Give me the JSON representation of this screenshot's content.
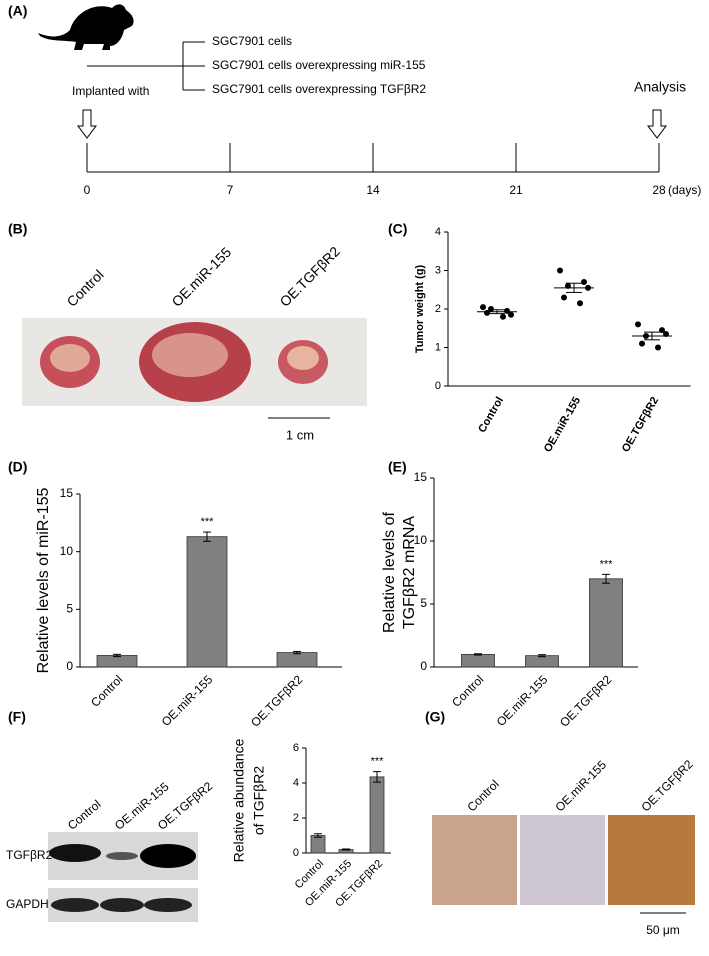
{
  "panel_labels": [
    "(A)",
    "(B)",
    "(C)",
    "(D)",
    "(E)",
    "(F)",
    "(G)"
  ],
  "timeline": {
    "groups": [
      "SGC7901 cells",
      "SGC7901 cells overexpressing miR-155",
      "SGC7901 cells overexpressing TGFβR2"
    ],
    "start_label": "Implanted with",
    "end_label": "Analysis",
    "days": [
      0,
      7,
      14,
      21,
      28
    ],
    "unit": "(days)"
  },
  "panel_b": {
    "labels": [
      "Control",
      "OE.miR-155",
      "OE.TGFβR2"
    ],
    "scale_bar": "1 cm"
  },
  "panel_f_blot": {
    "labels": [
      "Control",
      "OE.miR-155",
      "OE.TGFβR2"
    ],
    "bands": [
      "TGFβR2",
      "GAPDH"
    ]
  },
  "panel_g": {
    "labels": [
      "Control",
      "OE.miR-155",
      "OE.TGFβR2"
    ],
    "scale_bar": "50 μm"
  },
  "chart_data": [
    {
      "type": "dot",
      "ylabel": "Tumor weight (g)",
      "categories": [
        "Control",
        "OE.miR-155",
        "OE.TGFβR2"
      ],
      "points": [
        [
          2.05,
          1.95,
          2.0,
          1.85,
          1.9,
          1.8
        ],
        [
          3.0,
          2.7,
          2.6,
          2.55,
          2.3,
          2.15
        ],
        [
          1.6,
          1.45,
          1.3,
          1.35,
          1.1,
          1.0
        ]
      ],
      "means": [
        1.93,
        2.55,
        1.3
      ],
      "errors": [
        0.05,
        0.12,
        0.1
      ],
      "color": "#000000",
      "ylim": [
        0,
        4
      ],
      "yticks": [
        0,
        1,
        2,
        3,
        4
      ]
    },
    {
      "type": "bar",
      "ylabel": "Relative levels of miR-155",
      "categories": [
        "Control",
        "OE.miR-155",
        "OE.TGFβR2"
      ],
      "values": [
        1,
        11.3,
        1.25
      ],
      "errors": [
        0.1,
        0.4,
        0.1
      ],
      "significance": [
        null,
        "***",
        null
      ],
      "color": "#808080",
      "ylim": [
        0,
        15
      ],
      "yticks": [
        0,
        5,
        10,
        15
      ]
    },
    {
      "type": "bar",
      "ylabel": [
        "Relative levels of",
        "TGFβR2 mRNA"
      ],
      "categories": [
        "Control",
        "OE.miR-155",
        "OE.TGFβR2"
      ],
      "values": [
        1,
        0.9,
        7
      ],
      "errors": [
        0.05,
        0.08,
        0.35
      ],
      "significance": [
        null,
        null,
        "***"
      ],
      "color": "#808080",
      "ylim": [
        0,
        15
      ],
      "yticks": [
        0,
        5,
        10,
        15
      ]
    },
    {
      "type": "bar",
      "ylabel": [
        "Relative abundance",
        "of TGFβR2"
      ],
      "categories": [
        "Control",
        "OE.miR-155",
        "OE.TGFβR2"
      ],
      "values": [
        1,
        0.2,
        4.35
      ],
      "errors": [
        0.1,
        0.03,
        0.3
      ],
      "significance": [
        null,
        null,
        "***"
      ],
      "color": "#808080",
      "ylim": [
        0,
        6
      ],
      "yticks": [
        0,
        2,
        4,
        6
      ]
    }
  ]
}
